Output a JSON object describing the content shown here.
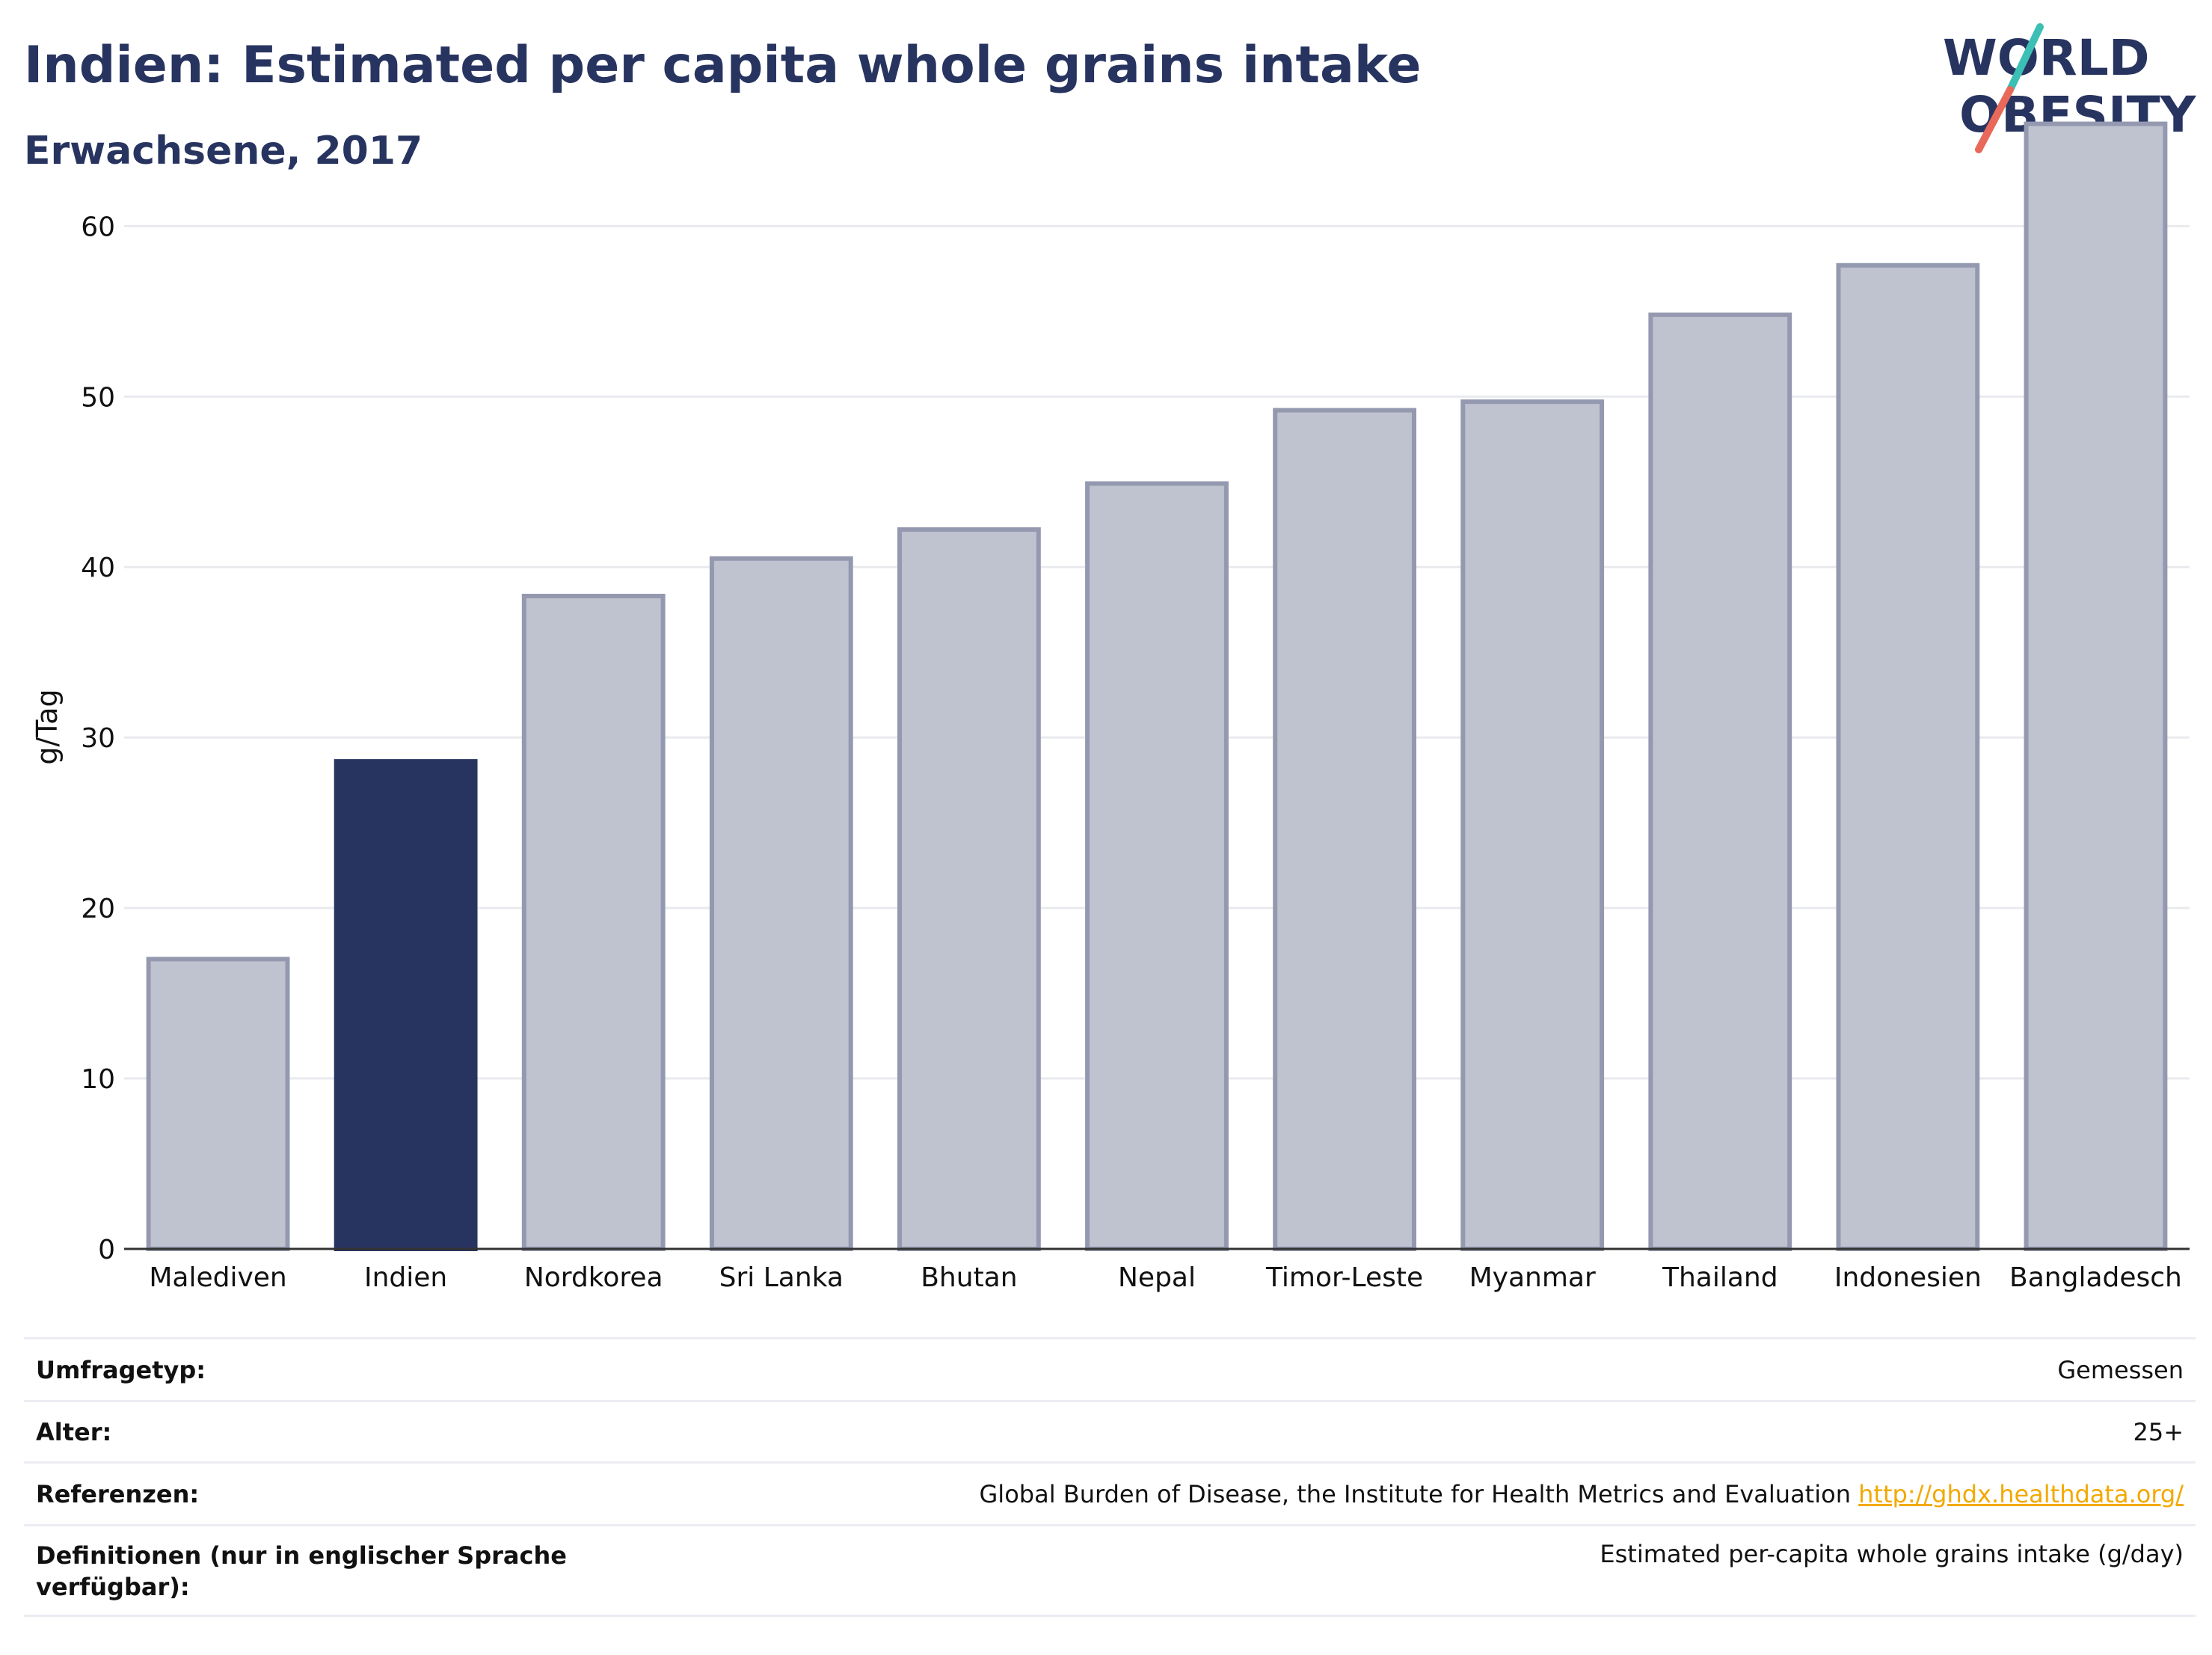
{
  "header": {
    "title": "Indien: Estimated per capita whole grains intake",
    "subtitle": "Erwachsene, 2017",
    "logo_line1": "WORLD",
    "logo_line2": "OBESITY"
  },
  "colors": {
    "highlight": "#283460",
    "bar_fill": "#bfc2cf",
    "bar_stroke": "#9499b0",
    "logo_teal": "#3cbfb4",
    "logo_red": "#e8685a",
    "link": "#f2a900"
  },
  "chart_data": {
    "type": "bar",
    "categories": [
      "Malediven",
      "Indien",
      "Nordkorea",
      "Sri Lanka",
      "Bhutan",
      "Nepal",
      "Timor-Leste",
      "Myanmar",
      "Thailand",
      "Indonesien",
      "Bangladesch"
    ],
    "values": [
      17.0,
      28.6,
      38.3,
      40.5,
      42.2,
      44.9,
      49.2,
      49.7,
      54.8,
      57.7,
      66.0
    ],
    "highlight": "Indien",
    "ylabel": "g/Tag",
    "ylim": [
      0,
      68
    ],
    "yticks": [
      0,
      10,
      20,
      30,
      40,
      50,
      60
    ],
    "grid": true,
    "legend": "none"
  },
  "info": {
    "rows": [
      {
        "label": "Umfragetyp:",
        "value": "Gemessen"
      },
      {
        "label": "Alter:",
        "value": "25+"
      },
      {
        "label": "Referenzen:",
        "value": "Global Burden of Disease, the Institute for Health Metrics and Evaluation",
        "link": "http://ghdx.healthdata.org/"
      },
      {
        "label": "Definitionen (nur in englischer Sprache verfügbar):",
        "value": "Estimated per-capita whole grains intake (g/day)"
      }
    ]
  }
}
